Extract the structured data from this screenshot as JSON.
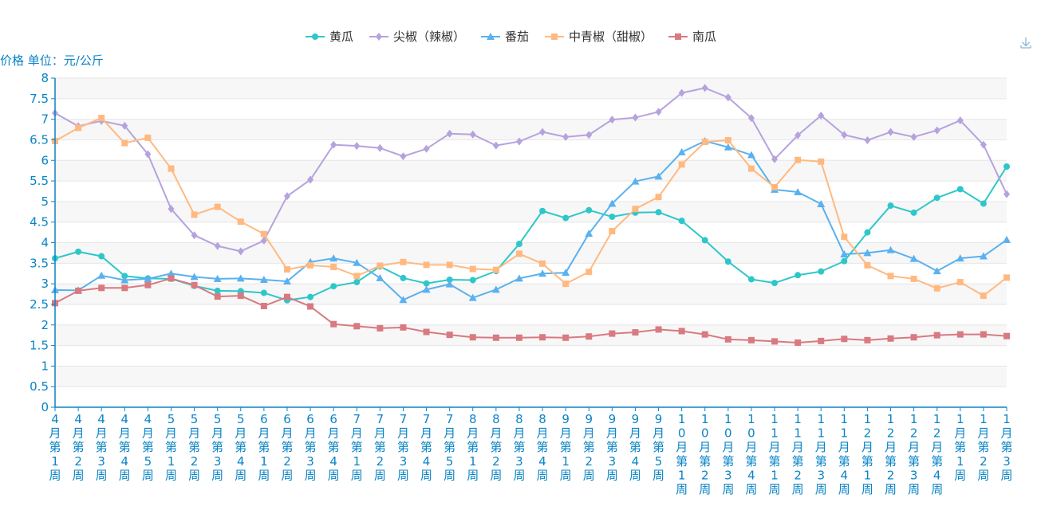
{
  "toolbar": {
    "download_icon": "download-icon"
  },
  "colors": {
    "axis": "#0a84c6",
    "band_light": "#f7f7f7",
    "band_white": "#ffffff",
    "grid": "#e6e6e6"
  },
  "chart_data": {
    "type": "line",
    "ylabel": "价格 单位：元/公斤",
    "ylim": [
      0,
      8
    ],
    "yticks": [
      "0",
      "0.5",
      "1",
      "1.5",
      "2",
      "2.5",
      "3",
      "3.5",
      "4",
      "4.5",
      "5",
      "5.5",
      "6",
      "6.5",
      "7",
      "7.5",
      "8"
    ],
    "legend_position": "top-center",
    "categories": [
      "4月第1周",
      "4月第2周",
      "4月第3周",
      "4月第4周",
      "4月第5周",
      "5月第1周",
      "5月第2周",
      "5月第3周",
      "5月第4周",
      "6月第1周",
      "6月第2周",
      "6月第3周",
      "6月第4周",
      "7月第1周",
      "7月第2周",
      "7月第3周",
      "7月第4周",
      "7月第5周",
      "8月第1周",
      "8月第2周",
      "8月第3周",
      "8月第4周",
      "9月第1周",
      "9月第2周",
      "9月第3周",
      "9月第4周",
      "9月第5周",
      "10月第1周",
      "10月第2周",
      "10月第3周",
      "10月第4周",
      "11月第1周",
      "11月第2周",
      "11月第3周",
      "11月第4周",
      "12月第1周",
      "12月第2周",
      "12月第3周",
      "12月第4周",
      "1月第1周",
      "1月第2周",
      "1月第3周"
    ],
    "series": [
      {
        "name": "黄瓜",
        "color": "#2ec7c9",
        "marker": "circle",
        "values": [
          3.62,
          3.78,
          3.67,
          3.19,
          3.13,
          3.12,
          2.95,
          2.83,
          2.82,
          2.78,
          2.6,
          2.68,
          2.94,
          3.04,
          3.42,
          3.14,
          3.01,
          3.1,
          3.09,
          3.31,
          3.97,
          4.77,
          4.6,
          4.79,
          4.63,
          4.73,
          4.74,
          4.53,
          4.06,
          3.54,
          3.11,
          3.02,
          3.21,
          3.3,
          3.55,
          4.25,
          4.9,
          4.73,
          5.09,
          5.3,
          4.95,
          5.85
        ]
      },
      {
        "name": "尖椒（辣椒）",
        "color": "#b6a2de",
        "marker": "diamond",
        "values": [
          7.15,
          6.83,
          6.96,
          6.84,
          6.15,
          4.82,
          4.18,
          3.92,
          3.79,
          4.05,
          5.13,
          5.53,
          6.38,
          6.35,
          6.3,
          6.1,
          6.28,
          6.65,
          6.63,
          6.36,
          6.46,
          6.69,
          6.57,
          6.62,
          6.99,
          7.04,
          7.18,
          7.64,
          7.76,
          7.53,
          7.03,
          6.03,
          6.61,
          7.09,
          6.62,
          6.49,
          6.69,
          6.57,
          6.73,
          6.97,
          6.38,
          5.18
        ]
      },
      {
        "name": "番茄",
        "color": "#5ab1ef",
        "marker": "triangle",
        "values": [
          2.85,
          2.84,
          3.2,
          3.09,
          3.12,
          3.25,
          3.17,
          3.12,
          3.13,
          3.1,
          3.06,
          3.53,
          3.62,
          3.51,
          3.14,
          2.61,
          2.86,
          2.99,
          2.66,
          2.86,
          3.13,
          3.25,
          3.27,
          4.22,
          4.95,
          5.49,
          5.61,
          6.2,
          6.47,
          6.32,
          6.13,
          5.29,
          5.23,
          4.94,
          3.72,
          3.75,
          3.82,
          3.61,
          3.31,
          3.62,
          3.67,
          4.07
        ]
      },
      {
        "name": "中青椒（甜椒）",
        "color": "#ffb980",
        "marker": "square",
        "values": [
          6.47,
          6.79,
          7.03,
          6.42,
          6.55,
          5.8,
          4.68,
          4.87,
          4.51,
          4.21,
          3.35,
          3.45,
          3.41,
          3.19,
          3.44,
          3.53,
          3.46,
          3.46,
          3.36,
          3.34,
          3.73,
          3.49,
          3.0,
          3.29,
          4.28,
          4.82,
          5.11,
          5.9,
          6.45,
          6.49,
          5.8,
          5.35,
          6.01,
          5.97,
          4.14,
          3.45,
          3.19,
          3.12,
          2.89,
          3.04,
          2.71,
          3.15
        ]
      },
      {
        "name": "南瓜",
        "color": "#d87a80",
        "marker": "square",
        "values": [
          2.53,
          2.83,
          2.9,
          2.9,
          2.97,
          3.13,
          2.97,
          2.69,
          2.71,
          2.46,
          2.68,
          2.45,
          2.02,
          1.97,
          1.92,
          1.94,
          1.83,
          1.76,
          1.7,
          1.69,
          1.69,
          1.7,
          1.69,
          1.72,
          1.79,
          1.82,
          1.89,
          1.85,
          1.77,
          1.65,
          1.63,
          1.6,
          1.57,
          1.61,
          1.66,
          1.63,
          1.67,
          1.7,
          1.75,
          1.77,
          1.77,
          1.73
        ]
      }
    ]
  }
}
